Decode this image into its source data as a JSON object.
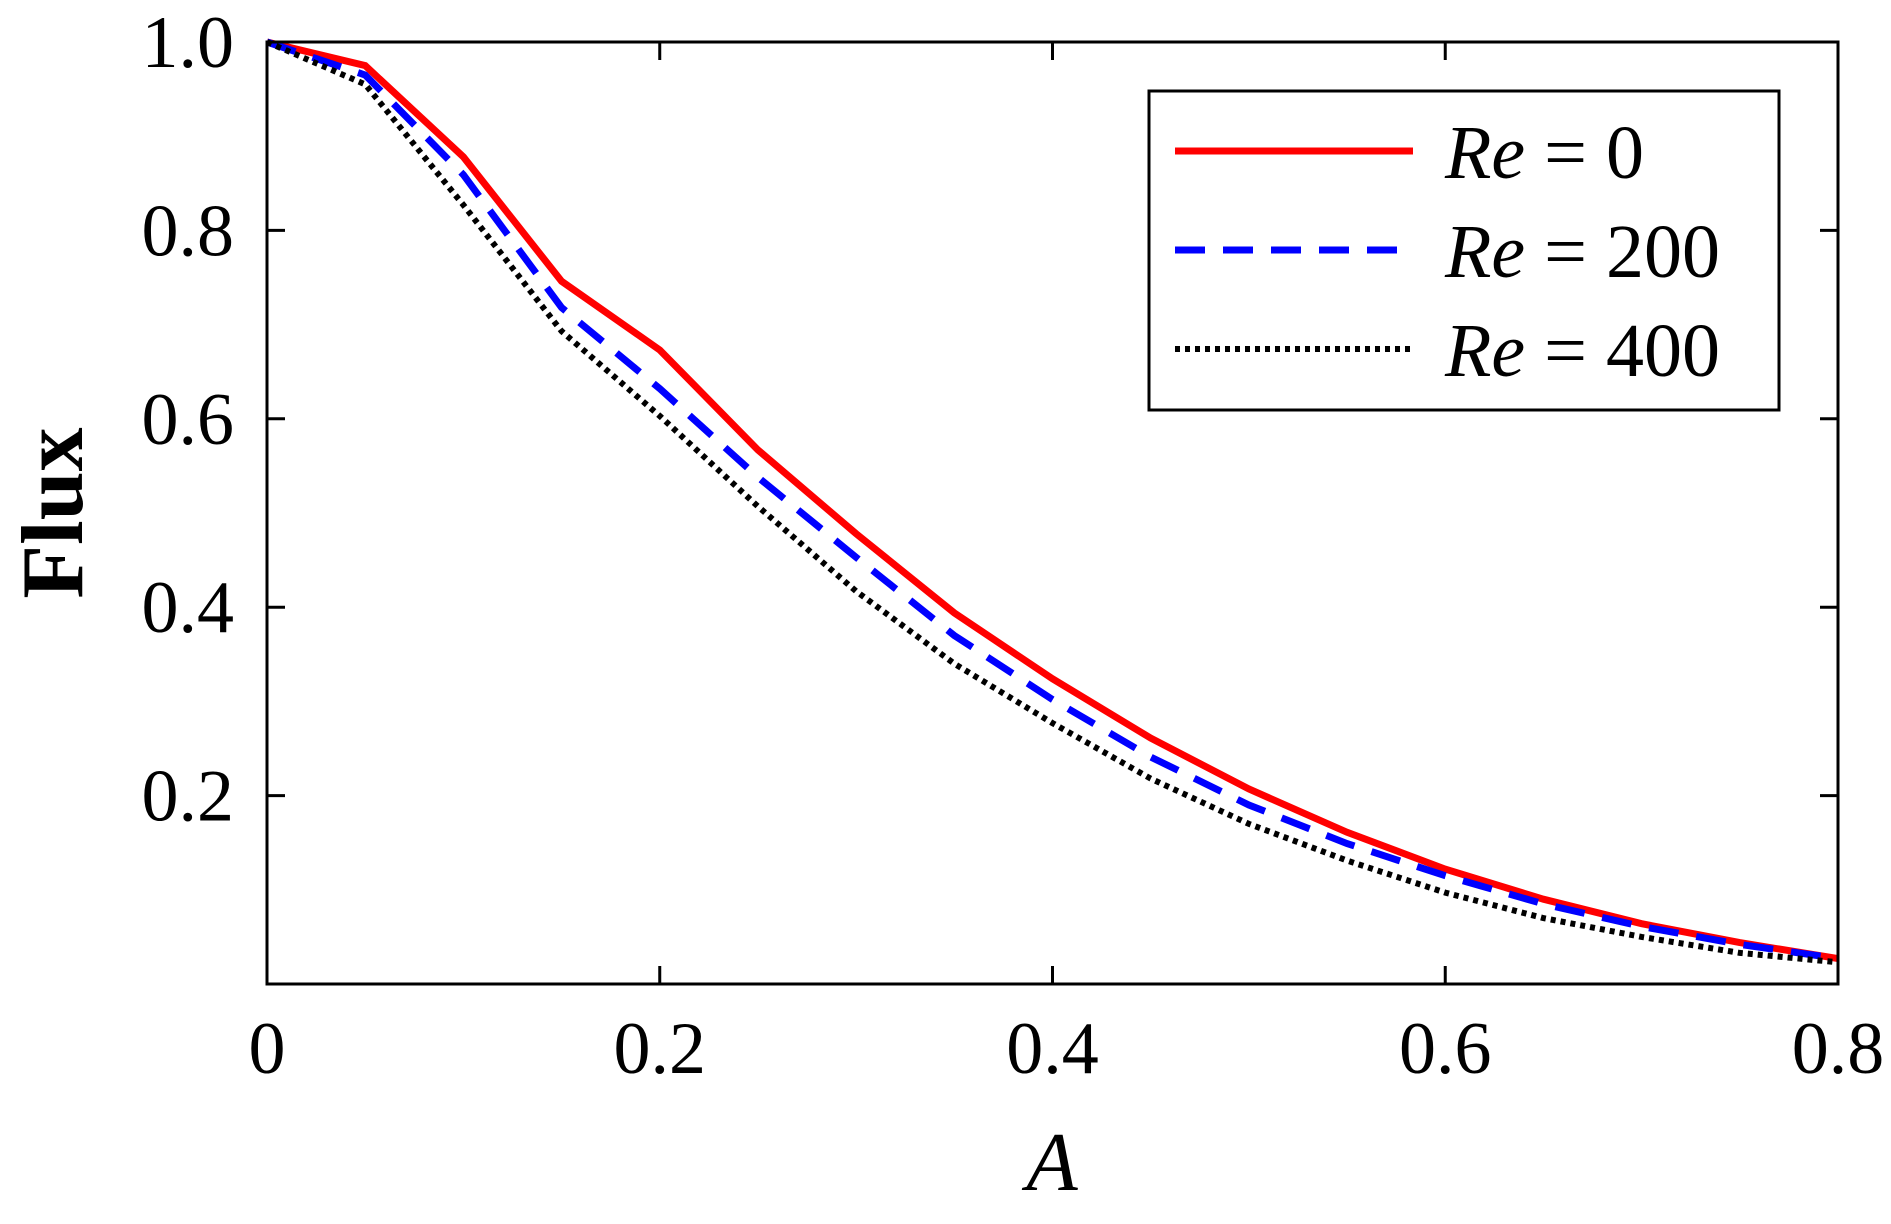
{
  "chart_data": {
    "type": "line",
    "title": "",
    "xlabel": "A",
    "ylabel": "Flux",
    "xlim": [
      0,
      0.8
    ],
    "ylim": [
      0,
      1.0
    ],
    "grid": false,
    "legend_position": "top-right",
    "x_ticks": [
      "0",
      "0.2",
      "0.4",
      "0.6",
      "0.8"
    ],
    "x_tick_values": [
      0,
      0.2,
      0.4,
      0.6,
      0.8
    ],
    "y_ticks": [
      "0.2",
      "0.4",
      "0.6",
      "0.8",
      "1.0"
    ],
    "y_tick_values": [
      0.2,
      0.4,
      0.6,
      0.8,
      1.0
    ],
    "x": [
      0,
      0.05,
      0.1,
      0.15,
      0.2,
      0.25,
      0.3,
      0.35,
      0.4,
      0.45,
      0.5,
      0.55,
      0.6,
      0.65,
      0.7,
      0.75,
      0.8
    ],
    "series": [
      {
        "name_prefix": "Re",
        "name_value": "= 0",
        "color": "#ff0000",
        "style": "solid",
        "values": [
          1.0,
          0.975,
          0.878,
          0.746,
          0.673,
          0.567,
          0.478,
          0.394,
          0.324,
          0.261,
          0.207,
          0.161,
          0.122,
          0.09,
          0.064,
          0.044,
          0.027
        ]
      },
      {
        "name_prefix": "Re",
        "name_value": "= 200",
        "color": "#0000ff",
        "style": "dashed",
        "values": [
          1.0,
          0.965,
          0.859,
          0.718,
          0.632,
          0.538,
          0.453,
          0.37,
          0.302,
          0.241,
          0.19,
          0.149,
          0.115,
          0.085,
          0.061,
          0.042,
          0.027
        ]
      },
      {
        "name_prefix": "Re",
        "name_value": "= 400",
        "color": "#000000",
        "style": "dotted",
        "values": [
          1.0,
          0.955,
          0.827,
          0.693,
          0.603,
          0.507,
          0.417,
          0.34,
          0.277,
          0.218,
          0.17,
          0.131,
          0.097,
          0.07,
          0.05,
          0.033,
          0.023
        ]
      }
    ]
  }
}
